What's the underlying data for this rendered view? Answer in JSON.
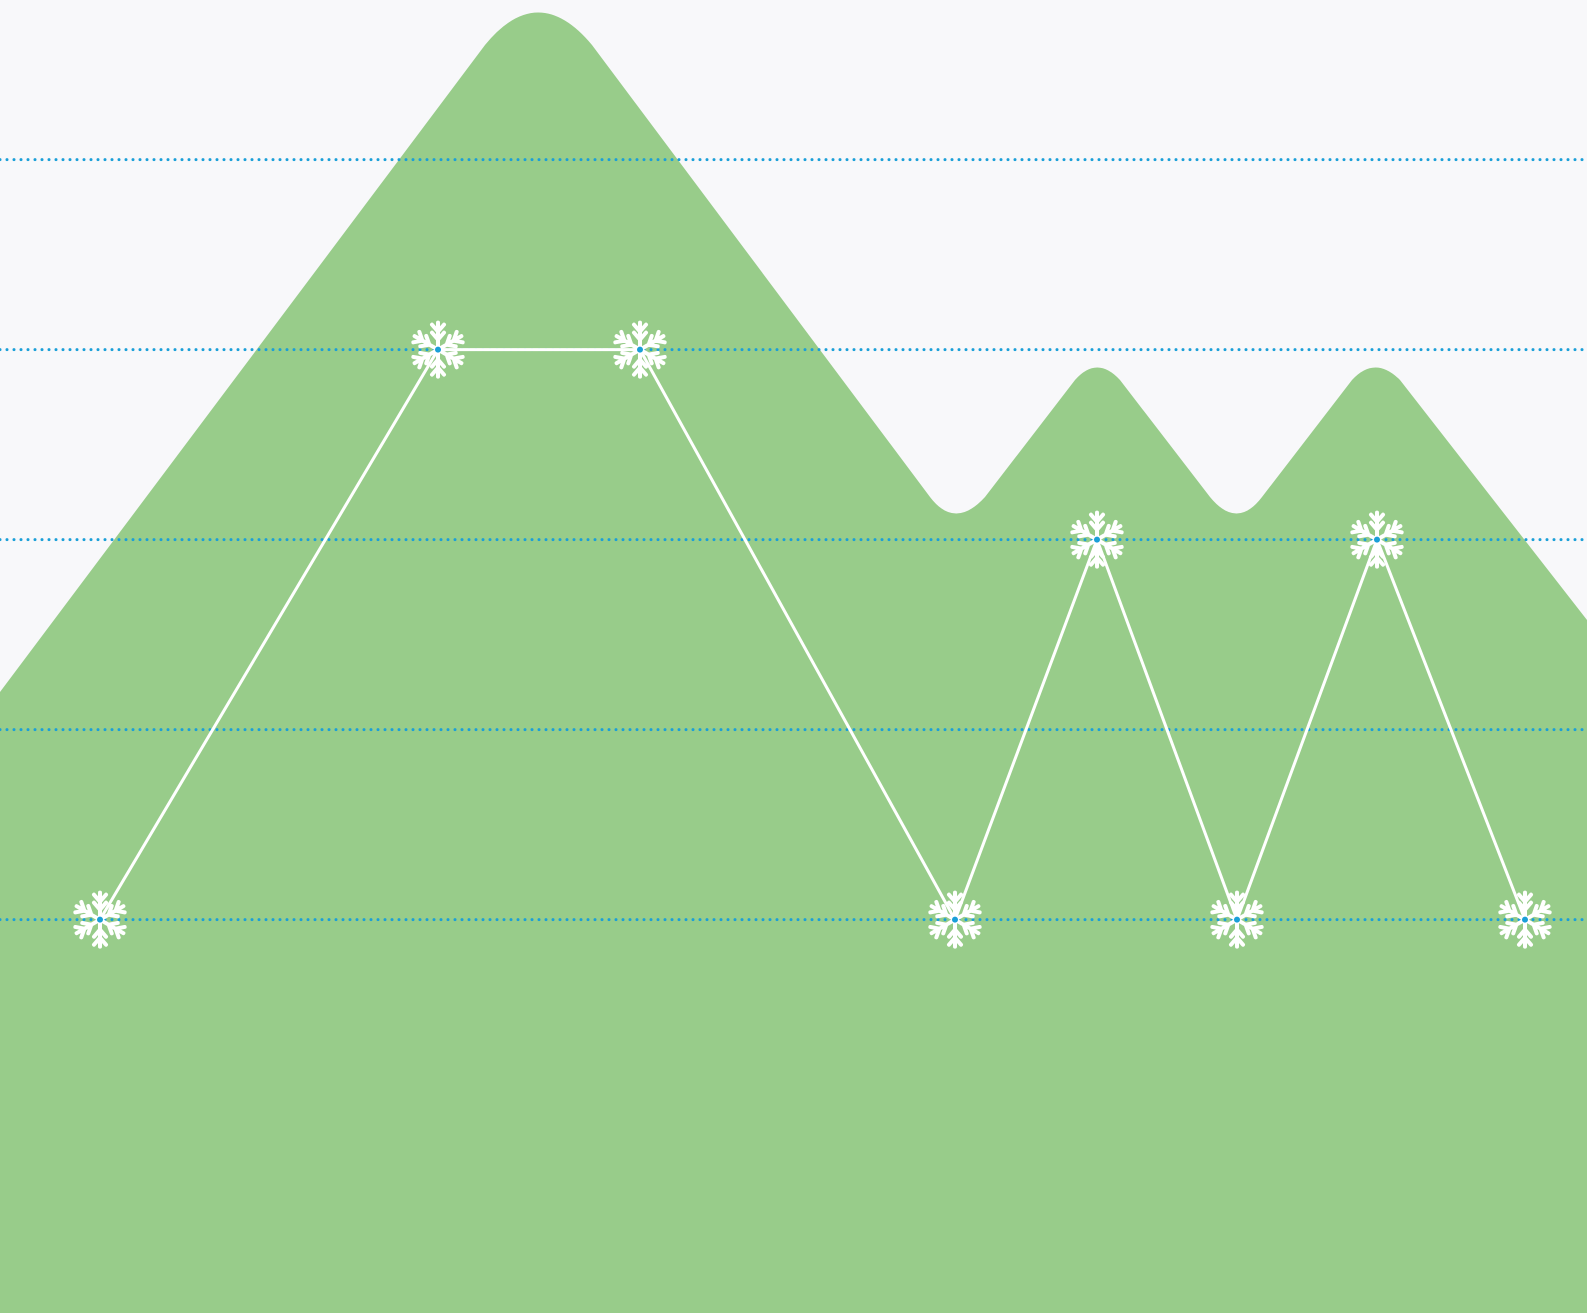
{
  "chart_data": {
    "type": "line",
    "x": [
      100,
      438,
      640,
      955,
      1097,
      1237,
      1377,
      1525
    ],
    "values": [
      1,
      4,
      4,
      1,
      3,
      1,
      3,
      1
    ],
    "xlim": [
      0,
      1587
    ],
    "ylim": [
      -1.07,
      5.84
    ],
    "yticks": [
      1,
      2,
      3,
      4,
      5
    ],
    "grid": true,
    "grid_color": "#1a9fd8",
    "color": "#ffffff"
  }
}
